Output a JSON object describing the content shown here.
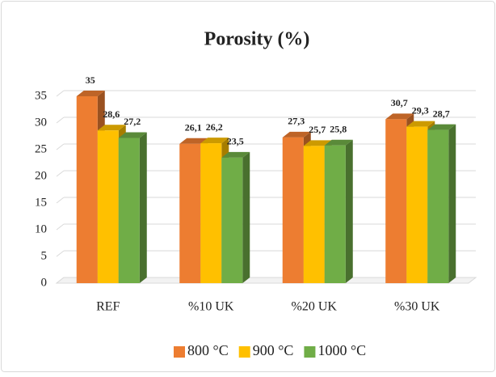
{
  "chart_data": {
    "type": "bar",
    "title": "Porosity (%)",
    "categories": [
      "REF",
      "%10 UK",
      "%20 UK",
      "%30 UK"
    ],
    "series": [
      {
        "name": "800 °C",
        "color": "#ed7d31",
        "values": [
          35,
          26.1,
          27.3,
          30.7
        ],
        "value_labels": [
          "35",
          "26,1",
          "27,3",
          "30,7"
        ]
      },
      {
        "name": "900 °C",
        "color": "#ffc000",
        "values": [
          28.6,
          26.2,
          25.7,
          29.3
        ],
        "value_labels": [
          "28,6",
          "26,2",
          "25,7",
          "29,3"
        ]
      },
      {
        "name": "1000 °C",
        "color": "#70ad47",
        "values": [
          27.2,
          23.5,
          25.8,
          28.7
        ],
        "value_labels": [
          "27,2",
          "23,5",
          "25,8",
          "28,7"
        ]
      }
    ],
    "ylim": [
      0,
      35
    ],
    "yticks": [
      0,
      5,
      10,
      15,
      20,
      25,
      30,
      35
    ],
    "grid": true,
    "legend": "bottom"
  }
}
